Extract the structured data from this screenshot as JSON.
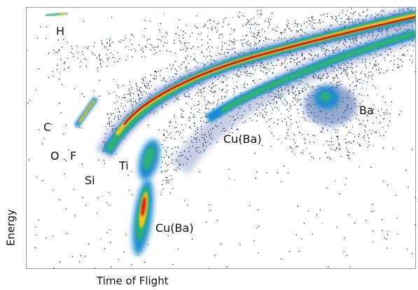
{
  "chart_data": {
    "type": "heatmap",
    "title": "",
    "xlabel": "Time of Flight",
    "ylabel": "Energy",
    "grid": false,
    "annotations": [
      {
        "text": "H"
      },
      {
        "text": "C"
      },
      {
        "text": "O"
      },
      {
        "text": "F"
      },
      {
        "text": "Si"
      },
      {
        "text": "Ti"
      },
      {
        "text": "Cu(Ba)",
        "id": "upper"
      },
      {
        "text": "Cu(Ba)",
        "id": "lower"
      },
      {
        "text": "Ba"
      }
    ],
    "colormap": [
      "#1a3f9a",
      "#1f8ad0",
      "#2fb07a",
      "#7fcf3f",
      "#f2c41a",
      "#e8622a",
      "#d22020"
    ]
  }
}
